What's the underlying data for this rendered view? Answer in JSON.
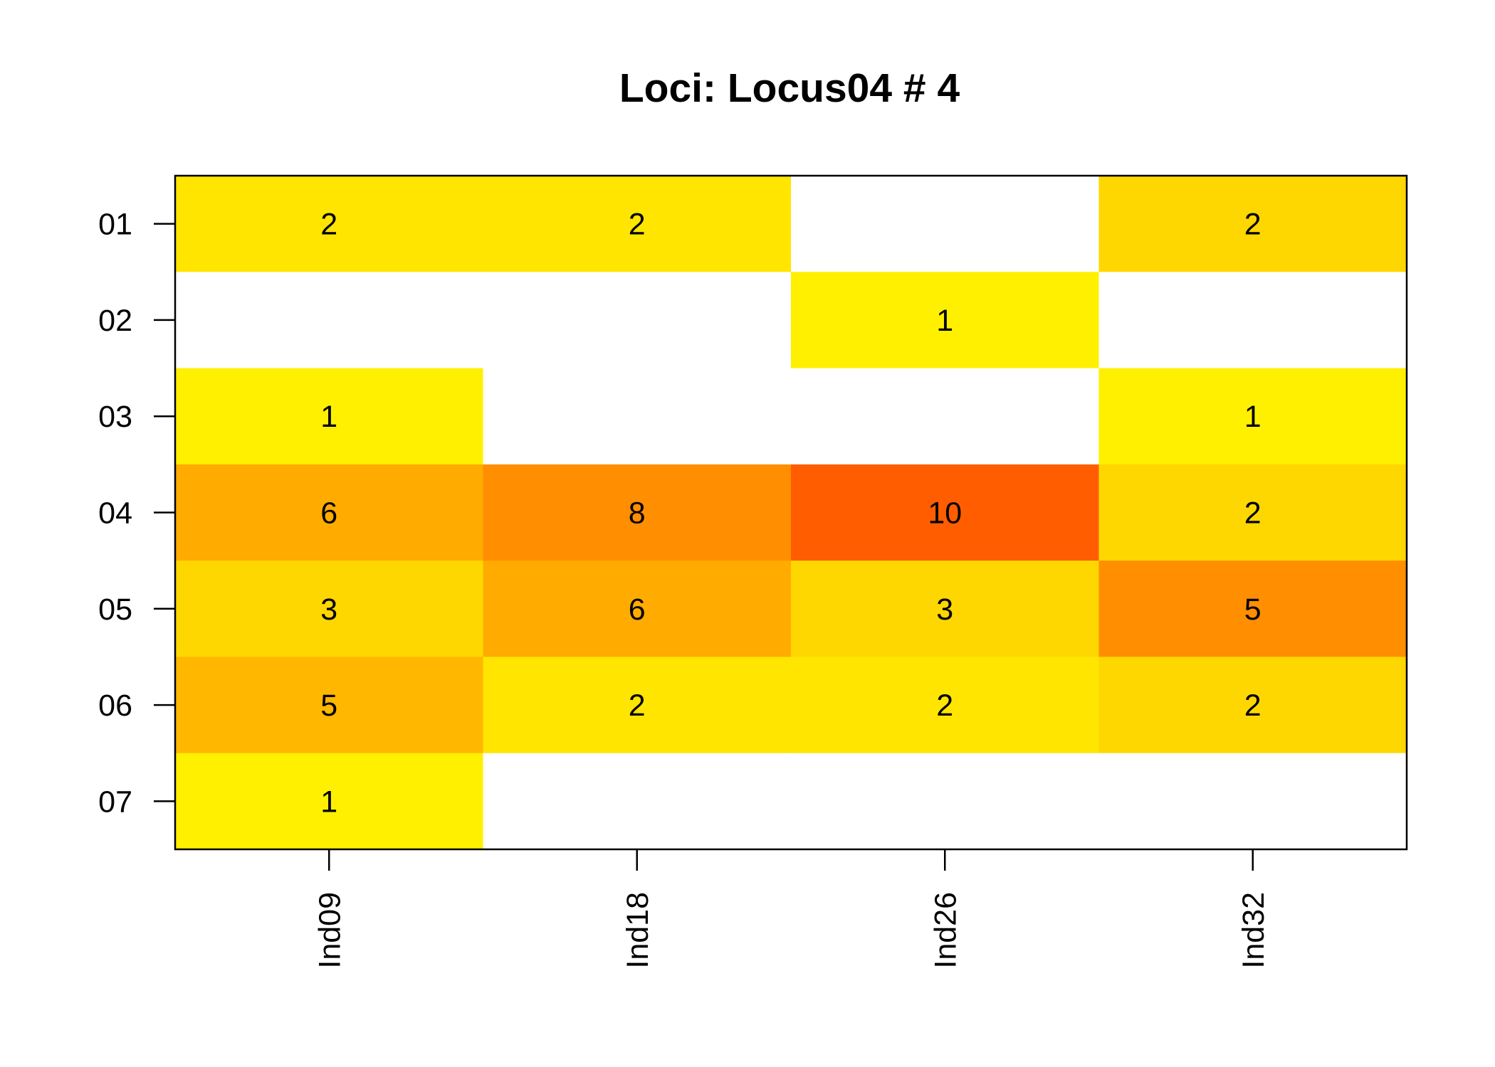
{
  "chart_data": {
    "type": "heatmap",
    "title": "Loci: Locus04 # 4",
    "xlabel": "",
    "ylabel": "",
    "x_categories": [
      "Ind09",
      "Ind18",
      "Ind26",
      "Ind32"
    ],
    "y_categories": [
      "01",
      "02",
      "03",
      "04",
      "05",
      "06",
      "07"
    ],
    "values": [
      [
        2,
        2,
        null,
        2
      ],
      [
        null,
        null,
        1,
        null
      ],
      [
        1,
        null,
        null,
        1
      ],
      [
        6,
        8,
        10,
        2
      ],
      [
        3,
        6,
        3,
        5
      ],
      [
        5,
        2,
        2,
        2
      ],
      [
        1,
        null,
        null,
        null
      ]
    ],
    "cell_colors": [
      [
        "#ffe500",
        "#ffe500",
        null,
        "#ffd700"
      ],
      [
        null,
        null,
        "#fff000",
        null
      ],
      [
        "#fff000",
        null,
        null,
        "#fff000"
      ],
      [
        "#ffab00",
        "#ff8e00",
        "#ff5d00",
        "#ffd700"
      ],
      [
        "#ffd700",
        "#ffab00",
        "#ffd700",
        "#ff8e00"
      ],
      [
        "#ffb700",
        "#ffe500",
        "#ffe500",
        "#ffd700"
      ],
      [
        "#fff000",
        null,
        null,
        null
      ]
    ],
    "color_scale": "heat (yellow to red)",
    "empty_cell_color": "#ffffff",
    "grid": false,
    "legend": "none"
  }
}
